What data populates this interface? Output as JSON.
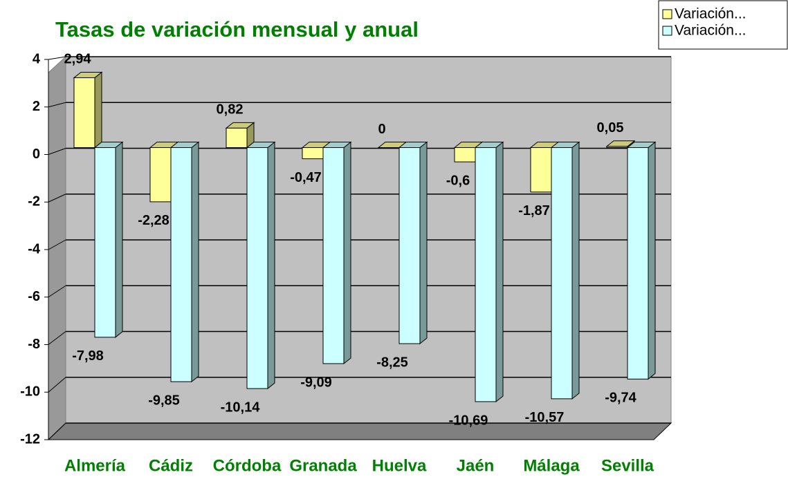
{
  "chart_data": {
    "type": "bar3d",
    "title": "Tasas de variación mensual y anual",
    "categories": [
      "Almería",
      "Cádiz",
      "Córdoba",
      "Granada",
      "Huelva",
      "Jaén",
      "Málaga",
      "Sevilla"
    ],
    "series": [
      {
        "name": "Variación...",
        "color": "#ffff99",
        "values": [
          2.94,
          -2.28,
          0.82,
          -0.47,
          0,
          -0.6,
          -1.87,
          0.05
        ],
        "value_labels": [
          "2,94",
          "-2,28",
          "0,82",
          "-0,47",
          "0",
          "-0,6",
          "-1,87",
          "0,05"
        ]
      },
      {
        "name": "Variación...",
        "color": "#ccffff",
        "values": [
          -7.98,
          -9.85,
          -10.14,
          -9.09,
          -8.25,
          -10.69,
          -10.57,
          -9.74
        ],
        "value_labels": [
          "-7,98",
          "-9,85",
          "-10,14",
          "-9,09",
          "-8,25",
          "-10,69",
          "-10,57",
          "-9,74"
        ]
      }
    ],
    "ylim": [
      -12,
      4
    ],
    "yticks": [
      4,
      2,
      0,
      -2,
      -4,
      -6,
      -8,
      -10,
      -12
    ],
    "grid": true,
    "legend": "top-right"
  }
}
